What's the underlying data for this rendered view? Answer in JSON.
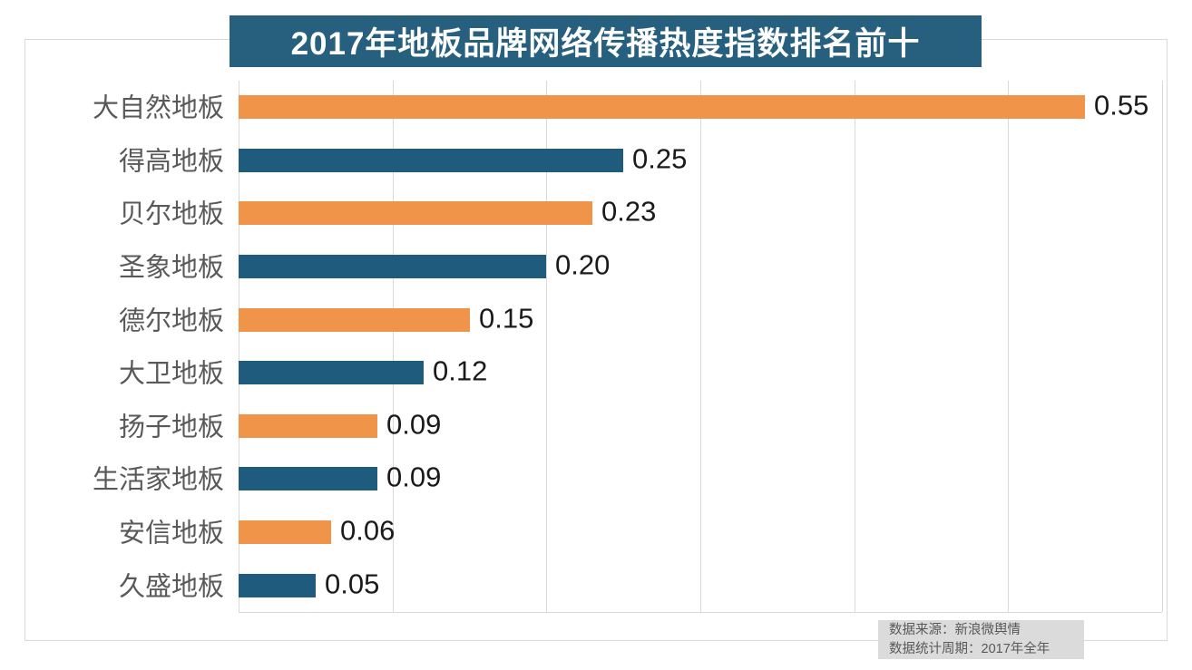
{
  "title": "2017年地板品牌网络传播热度指数排名前十",
  "source_note": {
    "line1": "数据来源：新浪微舆情",
    "line2": "数据统计周期：2017年全年"
  },
  "colors": {
    "title_bg": "#27607f",
    "bar_orange": "#f0944a",
    "bar_teal": "#1f5b7c",
    "gridline": "#d9d9d9",
    "category_label": "#595959",
    "value_label": "#1a1a1a",
    "source_bg": "#dbdbdb"
  },
  "chart_data": {
    "type": "bar",
    "orientation": "horizontal",
    "title": "2017年地板品牌网络传播热度指数排名前十",
    "categories": [
      "大自然地板",
      "得高地板",
      "贝尔地板",
      "圣象地板",
      "德尔地板",
      "大卫地板",
      "扬子地板",
      "生活家地板",
      "安信地板",
      "久盛地板"
    ],
    "values": [
      0.55,
      0.25,
      0.23,
      0.2,
      0.15,
      0.12,
      0.09,
      0.09,
      0.06,
      0.05
    ],
    "value_labels": [
      "0.55",
      "0.25",
      "0.23",
      "0.20",
      "0.15",
      "0.12",
      "0.09",
      "0.09",
      "0.06",
      "0.05"
    ],
    "xlabel": "",
    "ylabel": "",
    "xlim": [
      0,
      0.6
    ],
    "gridline_interval": 0.1,
    "grid": "vertical-only",
    "legend": "none",
    "bar_colors_alternate": [
      "#f0944a",
      "#1f5b7c"
    ],
    "annotations": [
      "数据来源：新浪微舆情",
      "数据统计周期：2017年全年"
    ]
  }
}
